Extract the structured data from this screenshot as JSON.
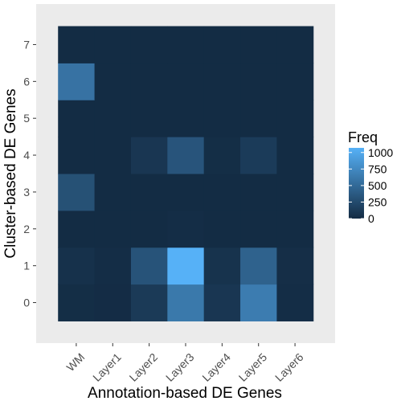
{
  "chart_data": {
    "type": "heatmap",
    "title": "",
    "xlabel": "Annotation-based DE Genes",
    "ylabel": "Cluster-based DE Genes",
    "x_categories": [
      "WM",
      "Layer1",
      "Layer2",
      "Layer3",
      "Layer4",
      "Layer5",
      "Layer6"
    ],
    "y_categories": [
      "0",
      "1",
      "2",
      "3",
      "4",
      "5",
      "6",
      "7"
    ],
    "values": [
      [
        20,
        10,
        120,
        620,
        90,
        650,
        15
      ],
      [
        50,
        15,
        320,
        1070,
        60,
        440,
        25
      ],
      [
        5,
        5,
        5,
        15,
        5,
        5,
        5
      ],
      [
        300,
        5,
        5,
        5,
        5,
        5,
        5
      ],
      [
        5,
        5,
        90,
        330,
        20,
        130,
        5
      ],
      [
        5,
        5,
        5,
        5,
        5,
        5,
        5
      ],
      [
        570,
        5,
        5,
        5,
        5,
        5,
        5
      ],
      [
        5,
        5,
        5,
        5,
        5,
        5,
        5
      ]
    ],
    "color_scale": {
      "low": "#132B43",
      "high": "#56B1F7",
      "limits": [
        0,
        1070
      ]
    },
    "legend": {
      "title": "Freq",
      "breaks": [
        0,
        250,
        500,
        750,
        1000
      ],
      "position": "right"
    },
    "grid": true,
    "panel_background": "#EBEBEB"
  }
}
